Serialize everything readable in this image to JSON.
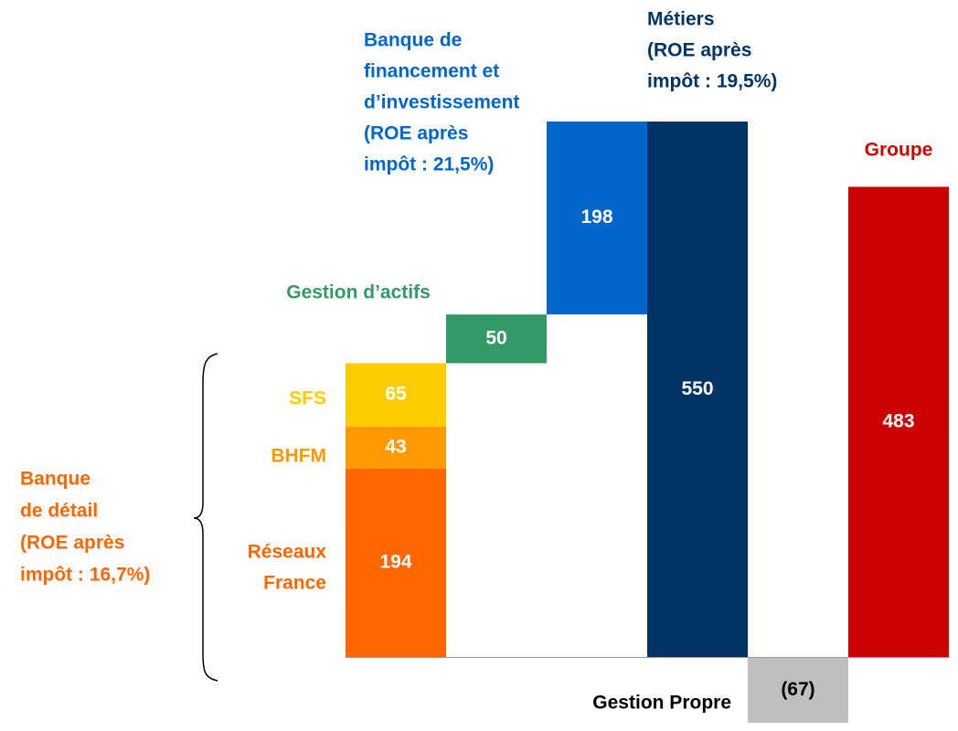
{
  "chart_data": {
    "type": "waterfall",
    "bars": [
      {
        "name": [
          "Réseaux",
          "France"
        ],
        "value": 194,
        "color": "#ff6600"
      },
      {
        "name": [
          "BHFM"
        ],
        "value": 43,
        "color": "#ff9900"
      },
      {
        "name": [
          "SFS"
        ],
        "value": 65,
        "color": "#ffcc00"
      },
      {
        "name": [
          "Gestion d’actifs"
        ],
        "value": 50,
        "color": "#339966"
      },
      {
        "name": [
          "Banque de",
          "financement et",
          "d’investissement",
          "(ROE après",
          "impôt : 21,5%)"
        ],
        "value": 198,
        "color": "#0066cc"
      },
      {
        "name": [
          "Métiers",
          "(ROE après",
          "impôt : 19,5%)"
        ],
        "value": 550,
        "color": "#003366",
        "total": true
      },
      {
        "name": [
          "Gestion Propre"
        ],
        "value": -67,
        "value_label": "(67)",
        "color": "#bfbfbf",
        "total": true
      },
      {
        "name": [
          "Groupe"
        ],
        "value": 483,
        "color": "#cc0000",
        "total": true
      }
    ],
    "groups": [
      {
        "name": [
          "Banque",
          "de détail",
          "(ROE après",
          "impôt : 16,7%)"
        ],
        "color": "#ff6600"
      }
    ],
    "ylim": [
      -67,
      550
    ]
  }
}
